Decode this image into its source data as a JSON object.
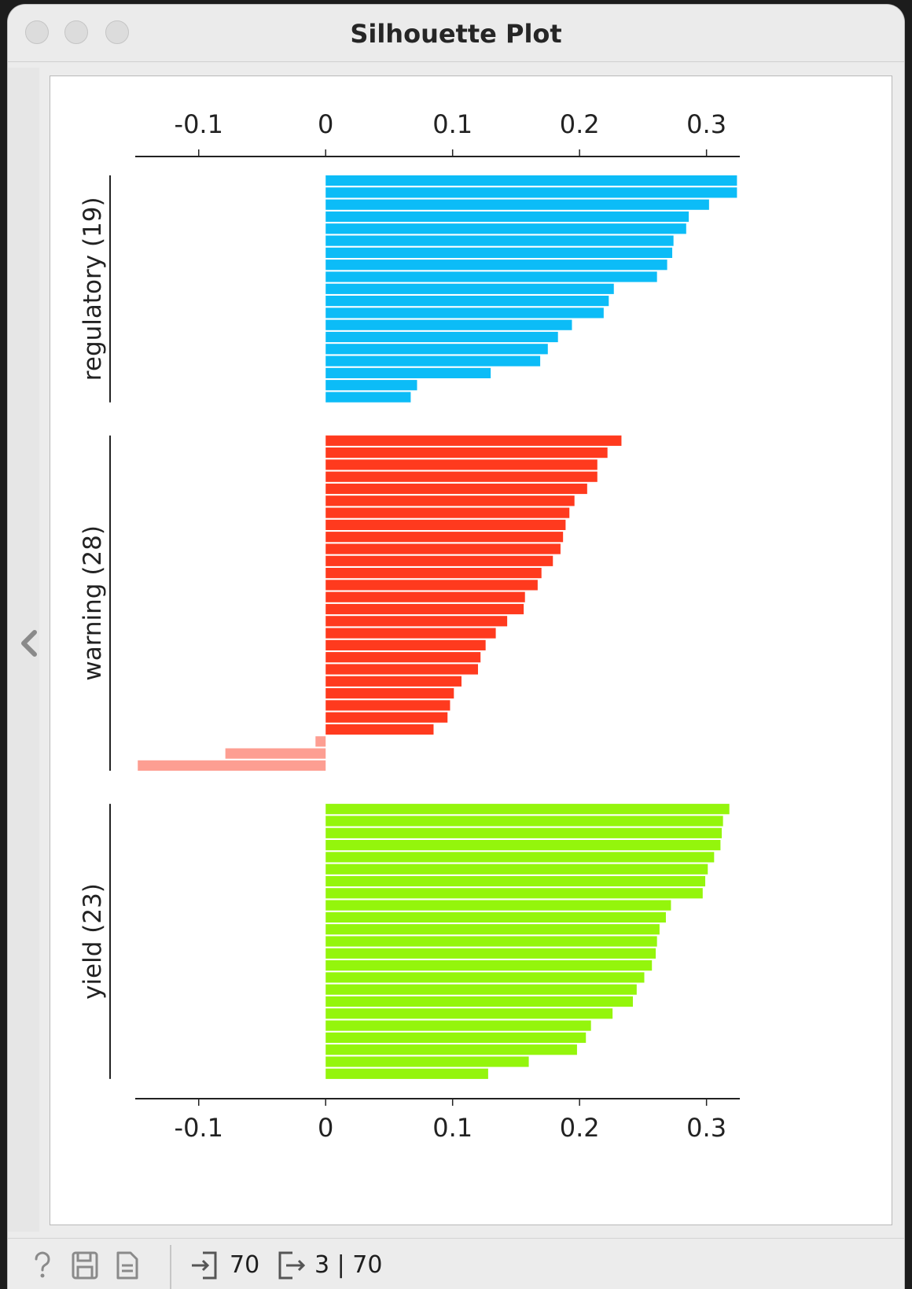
{
  "window": {
    "title": "Silhouette Plot"
  },
  "status_bar": {
    "input_count": "70",
    "output_count": "3 | 70",
    "icons": [
      "help-icon",
      "save-icon",
      "report-icon",
      "input-icon",
      "output-icon"
    ]
  },
  "chart_data": {
    "type": "bar",
    "orientation": "horizontal",
    "title": "",
    "xlabel": "",
    "ylabel": "",
    "xlim": [
      -0.15,
      0.325
    ],
    "x_ticks": [
      "-0.1",
      "0",
      "0.1",
      "0.2",
      "0.3"
    ],
    "x_tick_values": [
      -0.1,
      0,
      0.1,
      0.2,
      0.3
    ],
    "grid": false,
    "legend": "none",
    "clusters": [
      {
        "name": "regulatory (19)",
        "color": "#0cbcf7",
        "values": [
          0.324,
          0.324,
          0.302,
          0.286,
          0.284,
          0.274,
          0.273,
          0.269,
          0.261,
          0.227,
          0.223,
          0.219,
          0.194,
          0.183,
          0.175,
          0.169,
          0.13,
          0.072,
          0.067
        ]
      },
      {
        "name": "warning (28)",
        "color": "#ff3a1e",
        "negative_color": "#fd9e92",
        "values": [
          0.233,
          0.222,
          0.214,
          0.214,
          0.206,
          0.196,
          0.192,
          0.189,
          0.187,
          0.185,
          0.179,
          0.17,
          0.167,
          0.157,
          0.156,
          0.143,
          0.134,
          0.126,
          0.122,
          0.12,
          0.107,
          0.101,
          0.098,
          0.096,
          0.085,
          -0.008,
          -0.079,
          -0.148
        ]
      },
      {
        "name": "yield (23)",
        "color": "#94f50c",
        "values": [
          0.318,
          0.313,
          0.312,
          0.311,
          0.306,
          0.301,
          0.299,
          0.297,
          0.272,
          0.268,
          0.263,
          0.261,
          0.26,
          0.257,
          0.251,
          0.245,
          0.242,
          0.226,
          0.209,
          0.205,
          0.198,
          0.16,
          0.128
        ]
      }
    ]
  }
}
